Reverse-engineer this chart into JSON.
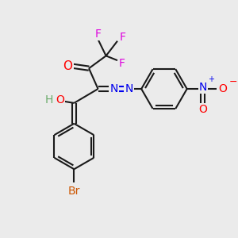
{
  "background_color": "#ebebeb",
  "bond_color": "#1a1a1a",
  "atom_colors": {
    "O": "#ff0000",
    "N": "#0000ee",
    "F": "#dd00dd",
    "Br": "#cc5500",
    "H": "#6aaa6a"
  },
  "figsize": [
    3.0,
    3.0
  ],
  "dpi": 100
}
